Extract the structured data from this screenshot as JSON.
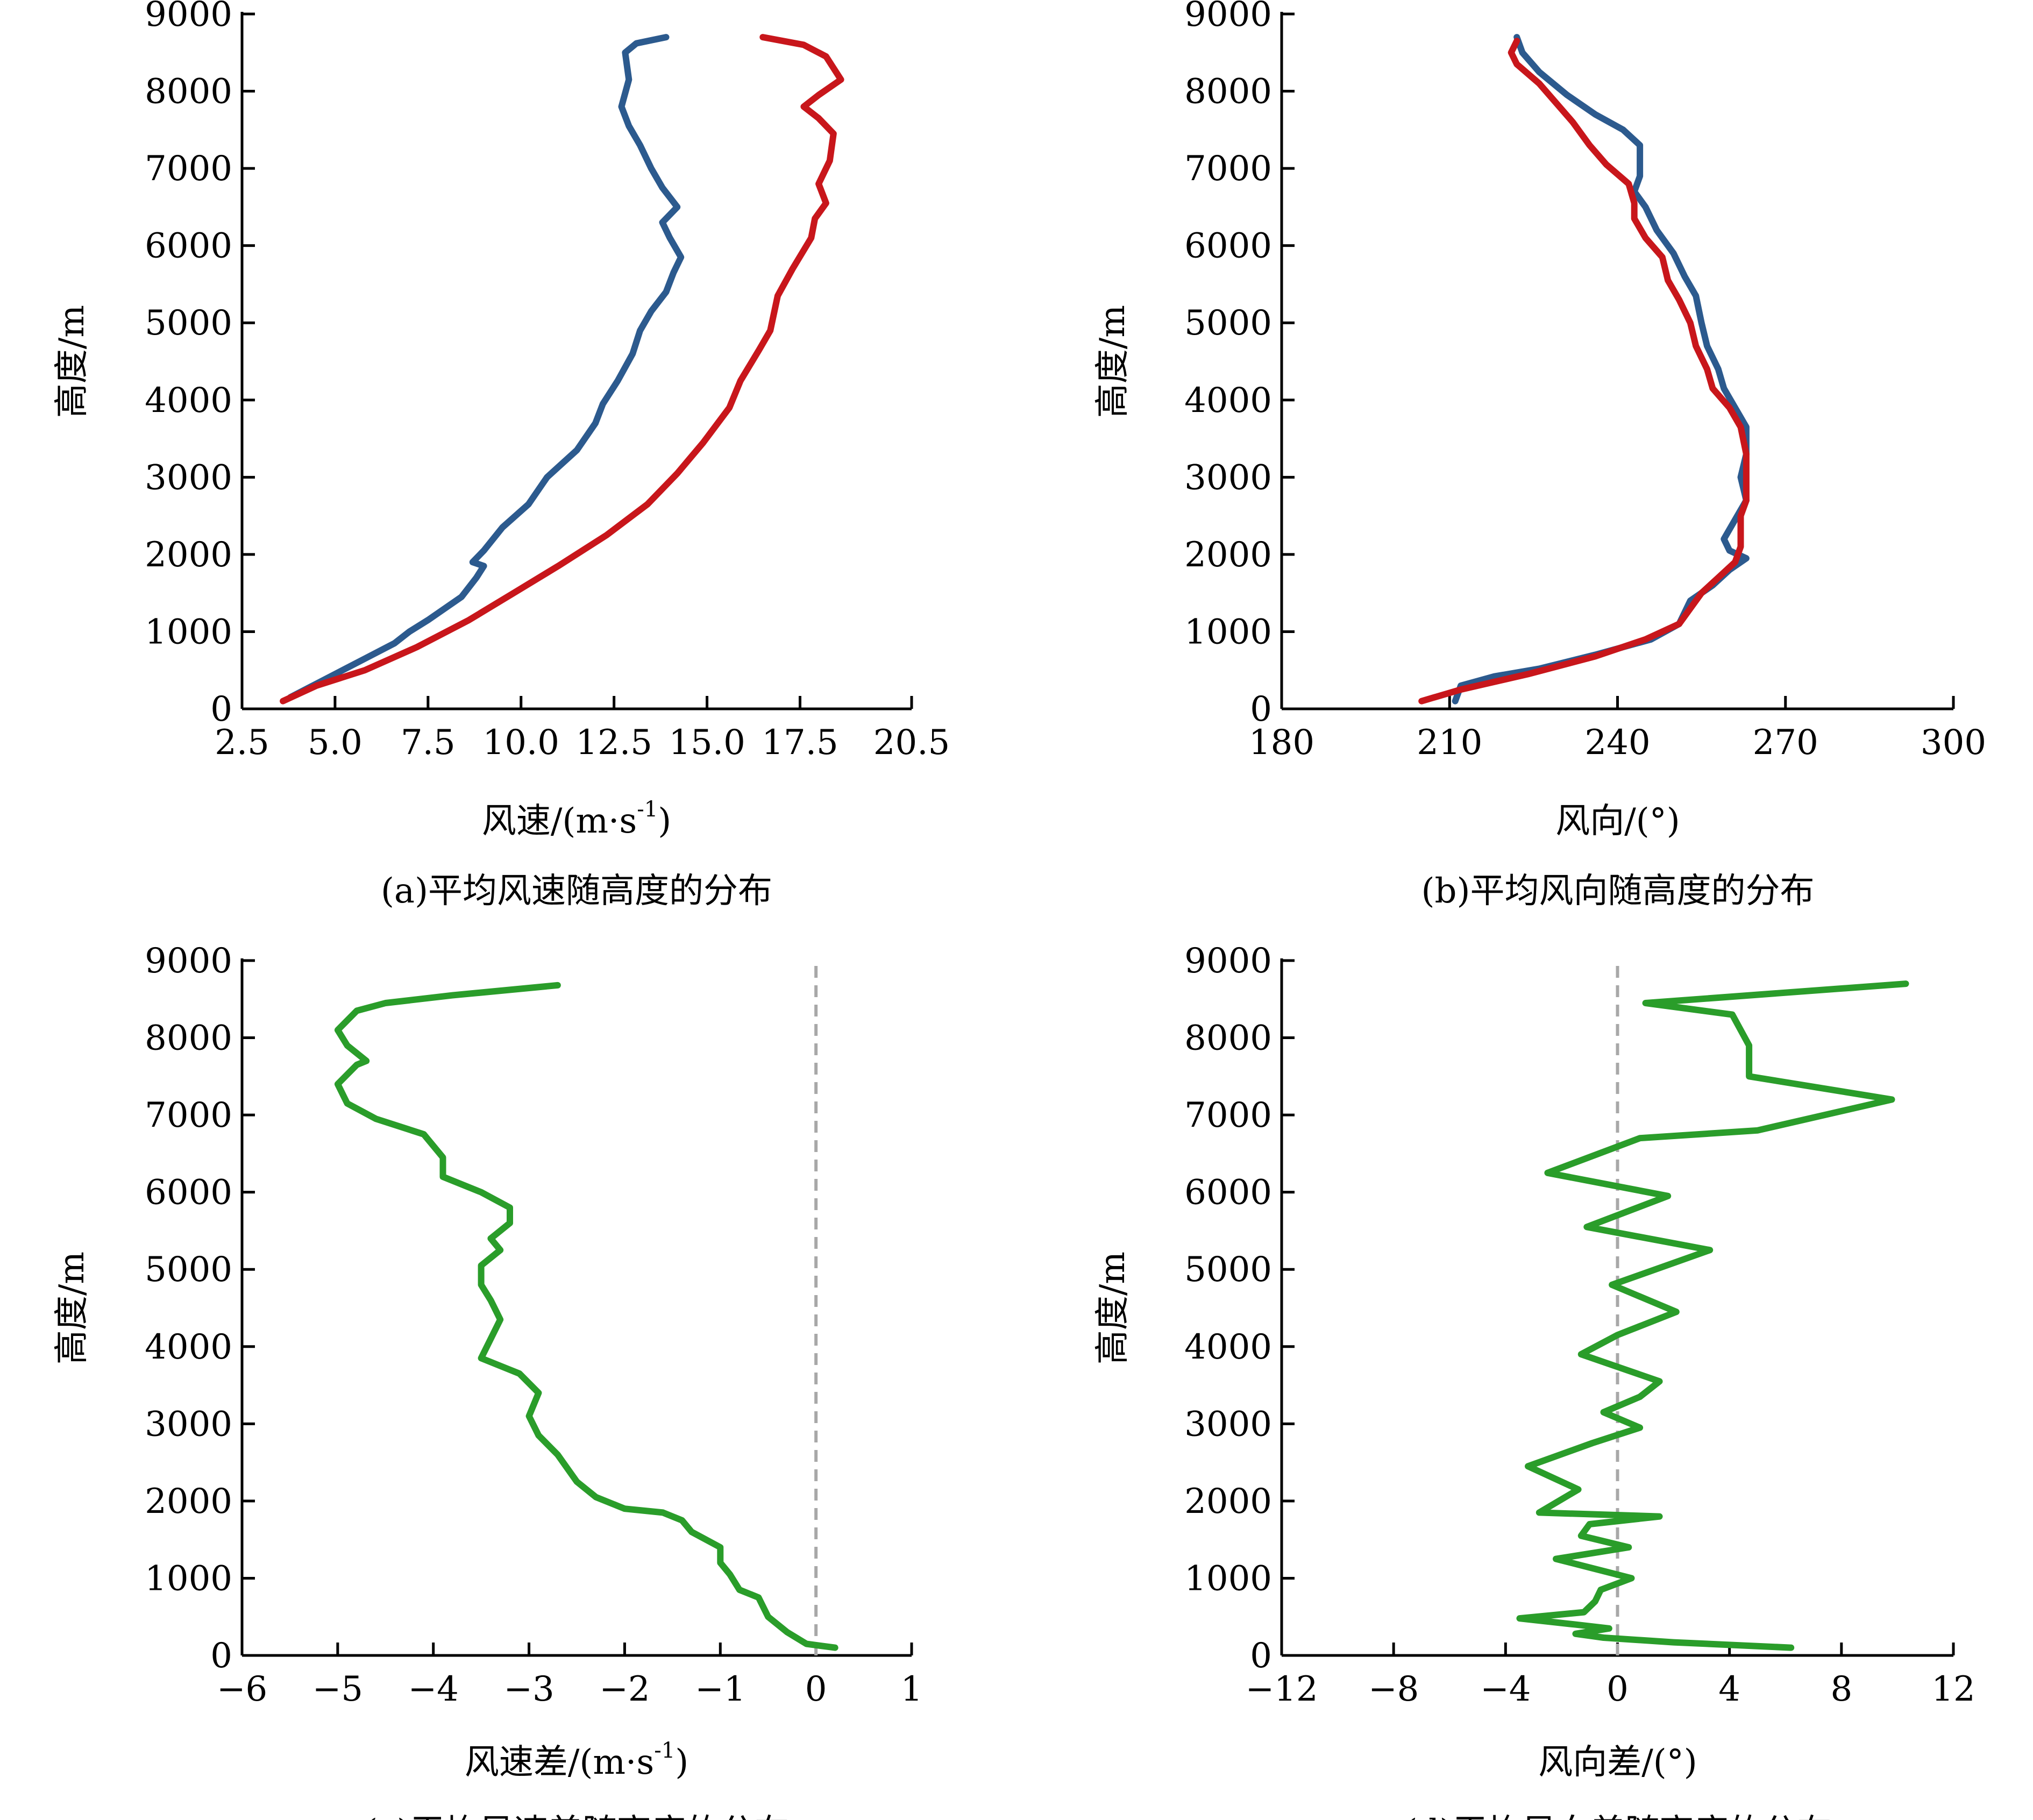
{
  "chart_data": [
    {
      "id": "a",
      "type": "line",
      "caption": "(a)平均风速随高度的分布",
      "xlabel": "风速/(m·s",
      "xlabel_sup": "-1",
      "xlabel_end": ")",
      "ylabel": "高度/m",
      "xlim": [
        2.5,
        20.5
      ],
      "ylim": [
        0,
        9000
      ],
      "xticks": [
        2.5,
        5.0,
        7.5,
        10.0,
        12.5,
        15.0,
        17.5,
        20.5
      ],
      "xtick_labels": [
        "2.5",
        "5.0",
        "7.5",
        "10.0",
        "12.5",
        "15.0",
        "17.5",
        "20.5"
      ],
      "yticks": [
        0,
        1000,
        2000,
        3000,
        4000,
        5000,
        6000,
        7000,
        8000,
        9000
      ],
      "ytick_labels": [
        "0",
        "1000",
        "2000",
        "3000",
        "4000",
        "5000",
        "6000",
        "7000",
        "8000",
        "9000"
      ],
      "series": [
        {
          "name": "blue",
          "color": "#2c5a8e",
          "points": [
            [
              3.8,
              150
            ],
            [
              4.4,
              300
            ],
            [
              5.0,
              450
            ],
            [
              5.8,
              650
            ],
            [
              6.6,
              850
            ],
            [
              7.0,
              1000
            ],
            [
              7.5,
              1150
            ],
            [
              8.4,
              1450
            ],
            [
              8.8,
              1700
            ],
            [
              9.0,
              1850
            ],
            [
              8.7,
              1900
            ],
            [
              9.0,
              2050
            ],
            [
              9.5,
              2350
            ],
            [
              10.2,
              2650
            ],
            [
              10.7,
              3000
            ],
            [
              11.5,
              3350
            ],
            [
              12.0,
              3700
            ],
            [
              12.2,
              3950
            ],
            [
              12.6,
              4250
            ],
            [
              13.0,
              4600
            ],
            [
              13.2,
              4900
            ],
            [
              13.5,
              5150
            ],
            [
              13.9,
              5400
            ],
            [
              14.1,
              5650
            ],
            [
              14.3,
              5850
            ],
            [
              14.0,
              6100
            ],
            [
              13.8,
              6300
            ],
            [
              14.2,
              6500
            ],
            [
              13.8,
              6750
            ],
            [
              13.5,
              7000
            ],
            [
              13.2,
              7300
            ],
            [
              12.9,
              7550
            ],
            [
              12.7,
              7800
            ],
            [
              12.9,
              8150
            ],
            [
              12.8,
              8500
            ],
            [
              13.1,
              8620
            ],
            [
              13.9,
              8700
            ]
          ]
        },
        {
          "name": "red",
          "color": "#c8161b",
          "points": [
            [
              3.6,
              100
            ],
            [
              4.5,
              300
            ],
            [
              5.8,
              500
            ],
            [
              7.2,
              800
            ],
            [
              8.6,
              1150
            ],
            [
              9.8,
              1500
            ],
            [
              11.0,
              1850
            ],
            [
              12.3,
              2250
            ],
            [
              13.4,
              2650
            ],
            [
              14.2,
              3050
            ],
            [
              14.9,
              3450
            ],
            [
              15.6,
              3900
            ],
            [
              15.9,
              4250
            ],
            [
              16.4,
              4650
            ],
            [
              16.7,
              4900
            ],
            [
              16.9,
              5350
            ],
            [
              17.3,
              5700
            ],
            [
              17.8,
              6100
            ],
            [
              17.9,
              6350
            ],
            [
              18.2,
              6550
            ],
            [
              18.0,
              6800
            ],
            [
              18.3,
              7100
            ],
            [
              18.4,
              7450
            ],
            [
              18.0,
              7650
            ],
            [
              17.6,
              7800
            ],
            [
              18.0,
              7950
            ],
            [
              18.6,
              8150
            ],
            [
              18.2,
              8450
            ],
            [
              17.6,
              8600
            ],
            [
              16.5,
              8700
            ]
          ]
        }
      ]
    },
    {
      "id": "b",
      "type": "line",
      "caption": "(b)平均风向随高度的分布",
      "xlabel": "风向/(°)",
      "ylabel": "高度/m",
      "xlim": [
        180,
        300
      ],
      "ylim": [
        0,
        9000
      ],
      "xticks": [
        180,
        210,
        240,
        270,
        300
      ],
      "xtick_labels": [
        "180",
        "210",
        "240",
        "270",
        "300"
      ],
      "yticks": [
        0,
        1000,
        2000,
        3000,
        4000,
        5000,
        6000,
        7000,
        8000,
        9000
      ],
      "ytick_labels": [
        "0",
        "1000",
        "2000",
        "3000",
        "4000",
        "5000",
        "6000",
        "7000",
        "8000",
        "9000"
      ],
      "series": [
        {
          "name": "blue",
          "color": "#2c5a8e",
          "points": [
            [
              211,
              100
            ],
            [
              212,
              300
            ],
            [
              218,
              420
            ],
            [
              226,
              520
            ],
            [
              236,
              700
            ],
            [
              246,
              900
            ],
            [
              251,
              1100
            ],
            [
              252,
              1250
            ],
            [
              253,
              1400
            ],
            [
              257,
              1600
            ],
            [
              260,
              1800
            ],
            [
              263,
              1950
            ],
            [
              260,
              2050
            ],
            [
              259,
              2200
            ],
            [
              261,
              2450
            ],
            [
              263,
              2700
            ],
            [
              262,
              3000
            ],
            [
              263,
              3300
            ],
            [
              263,
              3650
            ],
            [
              261,
              3900
            ],
            [
              259,
              4150
            ],
            [
              258,
              4400
            ],
            [
              256,
              4700
            ],
            [
              255,
              5000
            ],
            [
              254,
              5350
            ],
            [
              252,
              5600
            ],
            [
              250,
              5900
            ],
            [
              247,
              6200
            ],
            [
              245,
              6500
            ],
            [
              243,
              6700
            ],
            [
              244,
              6900
            ],
            [
              244,
              7100
            ],
            [
              244,
              7300
            ],
            [
              241,
              7500
            ],
            [
              236,
              7700
            ],
            [
              231,
              7950
            ],
            [
              226,
              8250
            ],
            [
              223,
              8500
            ],
            [
              222,
              8700
            ]
          ]
        },
        {
          "name": "red",
          "color": "#c8161b",
          "points": [
            [
              205,
              100
            ],
            [
              212,
              250
            ],
            [
              224,
              450
            ],
            [
              236,
              680
            ],
            [
              245,
              900
            ],
            [
              251,
              1100
            ],
            [
              253,
              1300
            ],
            [
              255,
              1500
            ],
            [
              258,
              1700
            ],
            [
              261,
              1900
            ],
            [
              262,
              2100
            ],
            [
              262,
              2300
            ],
            [
              262,
              2500
            ],
            [
              263,
              2700
            ],
            [
              263,
              3000
            ],
            [
              263,
              3300
            ],
            [
              262,
              3650
            ],
            [
              260,
              3900
            ],
            [
              257,
              4150
            ],
            [
              256,
              4400
            ],
            [
              254,
              4700
            ],
            [
              253,
              5000
            ],
            [
              251,
              5300
            ],
            [
              249,
              5550
            ],
            [
              248,
              5850
            ],
            [
              245,
              6100
            ],
            [
              243,
              6350
            ],
            [
              243,
              6550
            ],
            [
              242,
              6800
            ],
            [
              238,
              7050
            ],
            [
              235,
              7300
            ],
            [
              232,
              7600
            ],
            [
              229,
              7850
            ],
            [
              226,
              8100
            ],
            [
              222,
              8350
            ],
            [
              221,
              8500
            ],
            [
              222,
              8650
            ]
          ]
        }
      ]
    },
    {
      "id": "c",
      "type": "line",
      "caption": "(c)平均风速差随高度的分布",
      "xlabel": "风速差/(m·s",
      "xlabel_sup": "-1",
      "xlabel_end": ")",
      "ylabel": "高度/m",
      "xlim": [
        -6,
        1
      ],
      "ylim": [
        0,
        9000
      ],
      "xticks": [
        -6,
        -5,
        -4,
        -3,
        -2,
        -1,
        0,
        1
      ],
      "xtick_labels": [
        "−6",
        "−5",
        "−4",
        "−3",
        "−2",
        "−1",
        "0",
        "1"
      ],
      "yticks": [
        0,
        1000,
        2000,
        3000,
        4000,
        5000,
        6000,
        7000,
        8000,
        9000
      ],
      "ytick_labels": [
        "0",
        "1000",
        "2000",
        "3000",
        "4000",
        "5000",
        "6000",
        "7000",
        "8000",
        "9000"
      ],
      "zero_line": 0,
      "series": [
        {
          "name": "green",
          "color": "#2a9d2a",
          "points": [
            [
              0.2,
              100
            ],
            [
              -0.1,
              150
            ],
            [
              -0.3,
              300
            ],
            [
              -0.5,
              500
            ],
            [
              -0.6,
              750
            ],
            [
              -0.8,
              850
            ],
            [
              -0.9,
              1050
            ],
            [
              -1.0,
              1200
            ],
            [
              -1.0,
              1400
            ],
            [
              -1.3,
              1600
            ],
            [
              -1.4,
              1750
            ],
            [
              -1.6,
              1850
            ],
            [
              -2.0,
              1900
            ],
            [
              -2.3,
              2050
            ],
            [
              -2.5,
              2250
            ],
            [
              -2.7,
              2600
            ],
            [
              -2.9,
              2850
            ],
            [
              -3.0,
              3100
            ],
            [
              -2.9,
              3400
            ],
            [
              -3.1,
              3650
            ],
            [
              -3.5,
              3850
            ],
            [
              -3.4,
              4100
            ],
            [
              -3.3,
              4350
            ],
            [
              -3.4,
              4600
            ],
            [
              -3.5,
              4800
            ],
            [
              -3.5,
              5050
            ],
            [
              -3.3,
              5250
            ],
            [
              -3.4,
              5400
            ],
            [
              -3.2,
              5600
            ],
            [
              -3.2,
              5800
            ],
            [
              -3.5,
              6000
            ],
            [
              -3.9,
              6200
            ],
            [
              -3.9,
              6450
            ],
            [
              -4.1,
              6750
            ],
            [
              -4.6,
              6950
            ],
            [
              -4.9,
              7150
            ],
            [
              -5.0,
              7400
            ],
            [
              -4.8,
              7650
            ],
            [
              -4.7,
              7700
            ],
            [
              -4.9,
              7900
            ],
            [
              -5.0,
              8100
            ],
            [
              -4.8,
              8350
            ],
            [
              -4.5,
              8450
            ],
            [
              -3.8,
              8550
            ],
            [
              -2.7,
              8680
            ]
          ]
        }
      ]
    },
    {
      "id": "d",
      "type": "line",
      "caption": "(d)平均风向差随高度的分布",
      "xlabel": "风向差/(°)",
      "ylabel": "高度/m",
      "xlim": [
        -12,
        12
      ],
      "ylim": [
        0,
        9000
      ],
      "xticks": [
        -12,
        -8,
        -4,
        0,
        4,
        8,
        12
      ],
      "xtick_labels": [
        "−12",
        "−8",
        "−4",
        "0",
        "4",
        "8",
        "12"
      ],
      "yticks": [
        0,
        1000,
        2000,
        3000,
        4000,
        5000,
        6000,
        7000,
        8000,
        9000
      ],
      "ytick_labels": [
        "0",
        "1000",
        "2000",
        "3000",
        "4000",
        "5000",
        "6000",
        "7000",
        "8000",
        "9000"
      ],
      "zero_line": 0,
      "series": [
        {
          "name": "green",
          "color": "#2a9d2a",
          "points": [
            [
              6.2,
              100
            ],
            [
              2.0,
              170
            ],
            [
              -0.5,
              230
            ],
            [
              -1.5,
              280
            ],
            [
              -0.3,
              350
            ],
            [
              -1.5,
              400
            ],
            [
              -3.5,
              480
            ],
            [
              -1.2,
              560
            ],
            [
              -0.8,
              700
            ],
            [
              -0.6,
              850
            ],
            [
              0.5,
              1000
            ],
            [
              -2.2,
              1250
            ],
            [
              0.4,
              1400
            ],
            [
              -1.3,
              1550
            ],
            [
              -1.0,
              1700
            ],
            [
              1.5,
              1800
            ],
            [
              -2.8,
              1850
            ],
            [
              -1.4,
              2150
            ],
            [
              -3.2,
              2450
            ],
            [
              -0.9,
              2750
            ],
            [
              0.8,
              2950
            ],
            [
              -0.5,
              3150
            ],
            [
              0.8,
              3350
            ],
            [
              1.5,
              3550
            ],
            [
              -1.3,
              3900
            ],
            [
              0.0,
              4150
            ],
            [
              2.1,
              4450
            ],
            [
              -0.2,
              4800
            ],
            [
              3.3,
              5250
            ],
            [
              -1.1,
              5550
            ],
            [
              1.8,
              5950
            ],
            [
              -2.5,
              6250
            ],
            [
              0.8,
              6700
            ],
            [
              5.0,
              6800
            ],
            [
              9.8,
              7200
            ],
            [
              4.7,
              7500
            ],
            [
              4.7,
              7900
            ],
            [
              4.1,
              8300
            ],
            [
              1.0,
              8450
            ],
            [
              10.3,
              8700
            ]
          ]
        }
      ]
    }
  ]
}
